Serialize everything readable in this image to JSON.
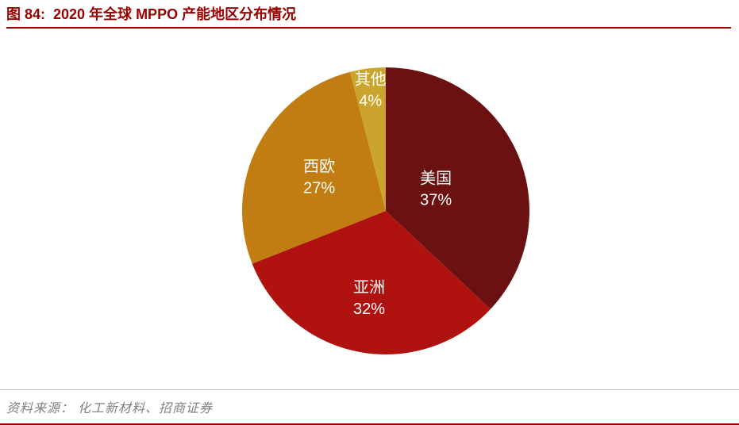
{
  "header": {
    "title": "图 84:  2020 年全球 MPPO 产能地区分布情况"
  },
  "footer": {
    "source": "资料来源： 化工新材料、招商证券"
  },
  "colors": {
    "accent": "#990000",
    "rule_gray": "#bfbfbf",
    "source_gray": "#7f7f7f",
    "label_text": "#ffffff"
  },
  "chart_data": {
    "type": "pie",
    "title": "2020 年全球 MPPO 产能地区分布情况",
    "unit": "%",
    "start_angle_deg": 0,
    "direction": "clockwise",
    "legend": "none",
    "label_format": "{label} {value}%",
    "label_color": "#ffffff",
    "slices": [
      {
        "label": "美国",
        "value": 37,
        "color": "#6c1112",
        "label_radius": 0.38
      },
      {
        "label": "亚洲",
        "value": 32,
        "color": "#b0120f",
        "label_radius": 0.62
      },
      {
        "label": "西欧",
        "value": 27,
        "color": "#c17c12",
        "label_radius": 0.52
      },
      {
        "label": "其他",
        "value": 4,
        "color": "#caa42c",
        "label_radius": 0.85
      }
    ]
  }
}
